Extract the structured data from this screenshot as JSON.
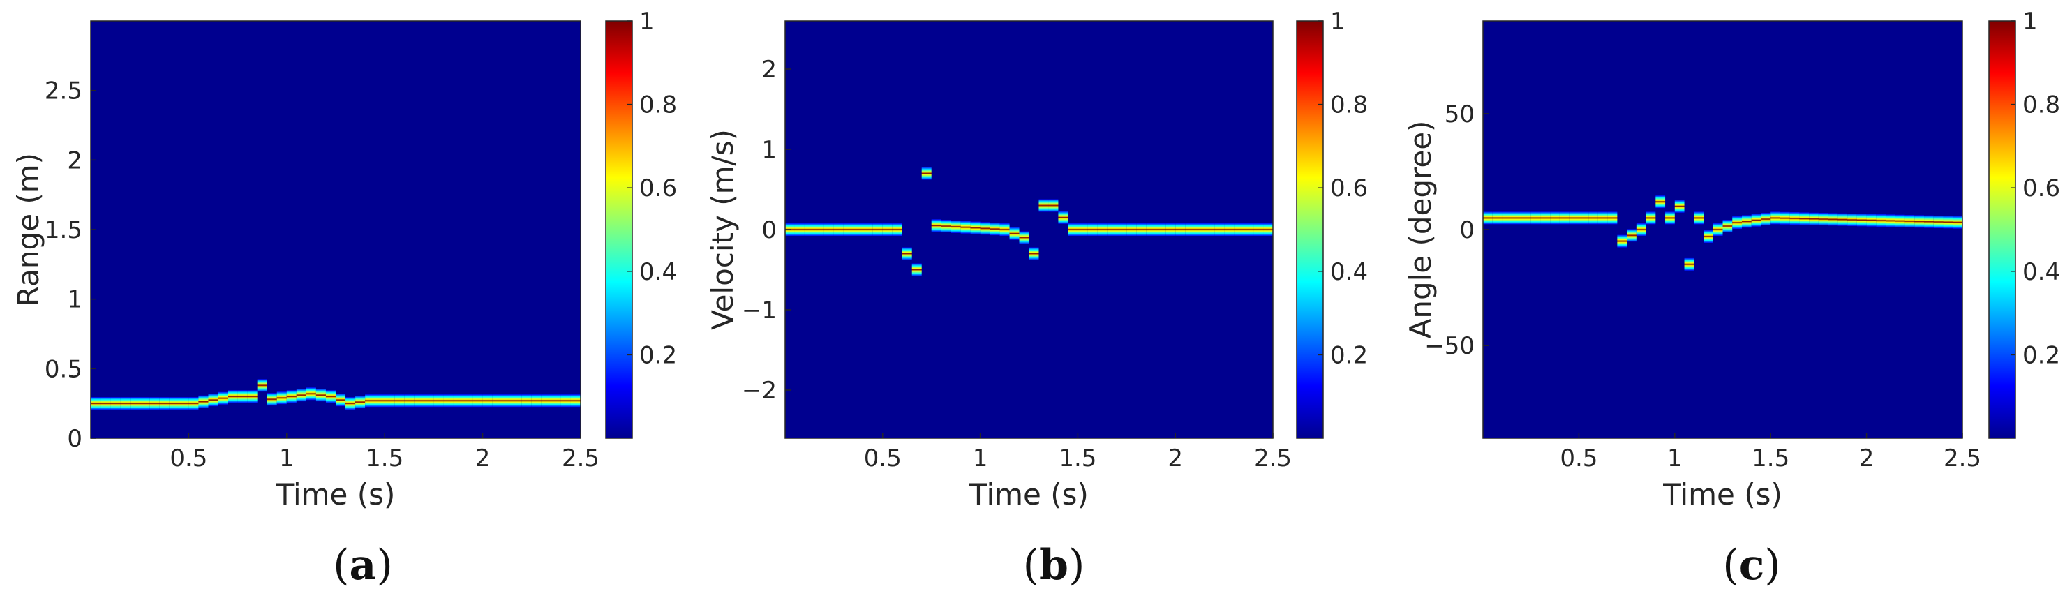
{
  "chart_data": [
    {
      "type": "heatmap",
      "caption_letter": "a",
      "xlabel": "Time (s)",
      "ylabel": "Range (m)",
      "xlim": [
        0,
        2.5
      ],
      "ylim": [
        0,
        3
      ],
      "xticks": [
        0.5,
        1,
        1.5,
        2,
        2.5
      ],
      "xtick_labels": [
        "0.5",
        "1",
        "1.5",
        "2",
        "2.5"
      ],
      "yticks": [
        0,
        0.5,
        1,
        1.5,
        2,
        2.5
      ],
      "ytick_labels": [
        "0",
        "0.5",
        "1",
        "1.5",
        "2",
        "2.5"
      ],
      "colorbar": {
        "range": [
          0,
          1
        ],
        "ticks": [
          0.2,
          0.4,
          0.6,
          0.8,
          1
        ],
        "tick_labels": [
          "0.2",
          "0.4",
          "0.6",
          "0.8",
          "1"
        ]
      },
      "ridge": {
        "t": [
          0,
          0.5,
          0.7,
          0.8,
          0.85,
          0.9,
          1.0,
          1.1,
          1.2,
          1.3,
          1.4,
          2.5
        ],
        "y": [
          0.25,
          0.25,
          0.3,
          0.3,
          0.38,
          0.28,
          0.3,
          0.32,
          0.3,
          0.25,
          0.27,
          0.27
        ]
      }
    },
    {
      "type": "heatmap",
      "caption_letter": "b",
      "xlabel": "Time (s)",
      "ylabel": "Velocity (m/s)",
      "xlim": [
        0,
        2.5
      ],
      "ylim": [
        -2.6,
        2.6
      ],
      "xticks": [
        0.5,
        1,
        1.5,
        2,
        2.5
      ],
      "xtick_labels": [
        "0.5",
        "1",
        "1.5",
        "2",
        "2.5"
      ],
      "yticks": [
        -2,
        -1,
        0,
        1,
        2
      ],
      "ytick_labels": [
        "−2",
        "−1",
        "0",
        "1",
        "2"
      ],
      "colorbar": {
        "range": [
          0,
          1
        ],
        "ticks": [
          0.2,
          0.4,
          0.6,
          0.8,
          1
        ],
        "tick_labels": [
          "0.2",
          "0.4",
          "0.6",
          "0.8",
          "1"
        ]
      },
      "ridge": {
        "t": [
          0,
          0.55,
          0.6,
          0.65,
          0.7,
          0.75,
          1.1,
          1.2,
          1.25,
          1.3,
          1.35,
          1.45,
          2.5
        ],
        "y": [
          0,
          0,
          -0.3,
          -0.5,
          0.7,
          0.05,
          0,
          -0.1,
          -0.3,
          0.3,
          0.3,
          0,
          0
        ]
      }
    },
    {
      "type": "heatmap",
      "caption_letter": "c",
      "xlabel": "Time (s)",
      "ylabel": "Angle (degree)",
      "xlim": [
        0,
        2.5
      ],
      "ylim": [
        -90,
        90
      ],
      "xticks": [
        0.5,
        1,
        1.5,
        2,
        2.5
      ],
      "xtick_labels": [
        "0.5",
        "1",
        "1.5",
        "2",
        "2.5"
      ],
      "yticks": [
        -50,
        0,
        50
      ],
      "ytick_labels": [
        "−50",
        "0",
        "50"
      ],
      "colorbar": {
        "range": [
          0,
          1
        ],
        "ticks": [
          0.2,
          0.4,
          0.6,
          0.8,
          1
        ],
        "tick_labels": [
          "0.2",
          "0.4",
          "0.6",
          "0.8",
          "1"
        ]
      },
      "ridge": {
        "t": [
          0,
          0.6,
          0.65,
          0.7,
          0.8,
          0.85,
          0.9,
          0.95,
          1.0,
          1.05,
          1.1,
          1.15,
          1.2,
          1.3,
          1.5,
          2.5
        ],
        "y": [
          5,
          5,
          5,
          -5,
          0,
          5,
          12,
          5,
          10,
          -15,
          5,
          -3,
          0,
          3,
          5,
          3
        ]
      }
    }
  ]
}
